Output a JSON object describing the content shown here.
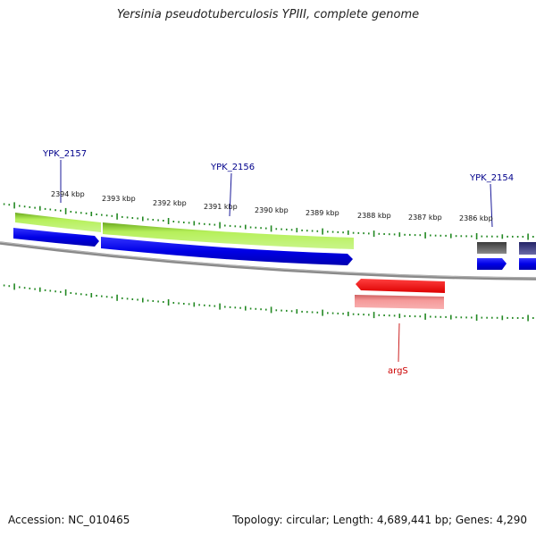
{
  "title": "Yersinia pseudotuberculosis YPIII, complete genome",
  "footer": {
    "accession": "Accession: NC_010465",
    "topology": "Topology: circular; Length: 4,689,441 bp; Genes: 4,290"
  },
  "ticks": [
    {
      "label": "2394 kbp"
    },
    {
      "label": "2393 kbp"
    },
    {
      "label": "2392 kbp"
    },
    {
      "label": "2391 kbp"
    },
    {
      "label": "2390 kbp"
    },
    {
      "label": "2389 kbp"
    },
    {
      "label": "2388 kbp"
    },
    {
      "label": "2387 kbp"
    },
    {
      "label": "2386 kbp"
    }
  ],
  "genes": [
    {
      "name": "YPK_2157",
      "color": "#00008b"
    },
    {
      "name": "YPK_2156",
      "color": "#00008b"
    },
    {
      "name": "YPK_2154",
      "color": "#00008b"
    },
    {
      "name": "argS",
      "color": "#cc0000"
    }
  ],
  "colors": {
    "cds_forward": "#0000ee",
    "gene_forward": "#99e633",
    "gene_reverse": "#ee0000",
    "cds_reverse": "#f08080",
    "other_gene": "#555555",
    "other_cds": "#333388",
    "backbone": "#888888",
    "ticks": "#228822"
  }
}
